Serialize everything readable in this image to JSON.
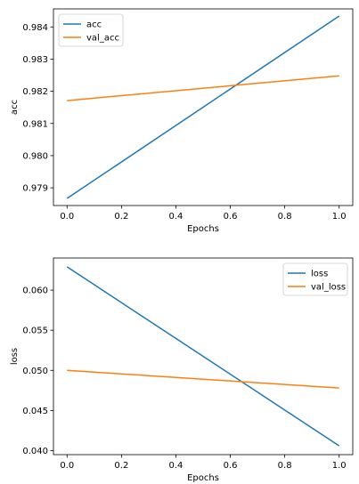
{
  "chart_data": [
    {
      "type": "line",
      "xlabel": "Epochs",
      "ylabel": "acc",
      "xlim": [
        -0.05,
        1.05
      ],
      "ylim": [
        0.97845,
        0.98456
      ],
      "xticks": [
        0.0,
        0.2,
        0.4,
        0.6,
        0.8,
        1.0
      ],
      "xtick_labels": [
        "0.0",
        "0.2",
        "0.4",
        "0.6",
        "0.8",
        "1.0"
      ],
      "yticks": [
        0.979,
        0.98,
        0.981,
        0.982,
        0.983,
        0.984
      ],
      "ytick_labels": [
        "0.979",
        "0.980",
        "0.981",
        "0.982",
        "0.983",
        "0.984"
      ],
      "grid": false,
      "legend_position": "top-left",
      "series": [
        {
          "name": "acc",
          "color": "#1f77b4",
          "x": [
            0,
            1
          ],
          "y": [
            0.97867,
            0.98434
          ]
        },
        {
          "name": "val_acc",
          "color": "#ff7f0e",
          "x": [
            0,
            1
          ],
          "y": [
            0.98171,
            0.98248
          ]
        }
      ]
    },
    {
      "type": "line",
      "xlabel": "Epochs",
      "ylabel": "loss",
      "xlim": [
        -0.05,
        1.05
      ],
      "ylim": [
        0.0395,
        0.064
      ],
      "xticks": [
        0.0,
        0.2,
        0.4,
        0.6,
        0.8,
        1.0
      ],
      "xtick_labels": [
        "0.0",
        "0.2",
        "0.4",
        "0.6",
        "0.8",
        "1.0"
      ],
      "yticks": [
        0.04,
        0.045,
        0.05,
        0.055,
        0.06
      ],
      "ytick_labels": [
        "0.040",
        "0.045",
        "0.050",
        "0.055",
        "0.060"
      ],
      "grid": false,
      "legend_position": "top-right",
      "series": [
        {
          "name": "loss",
          "color": "#1f77b4",
          "x": [
            0,
            1
          ],
          "y": [
            0.0629,
            0.0406
          ]
        },
        {
          "name": "val_loss",
          "color": "#ff7f0e",
          "x": [
            0,
            1
          ],
          "y": [
            0.05,
            0.0478
          ]
        }
      ]
    }
  ]
}
